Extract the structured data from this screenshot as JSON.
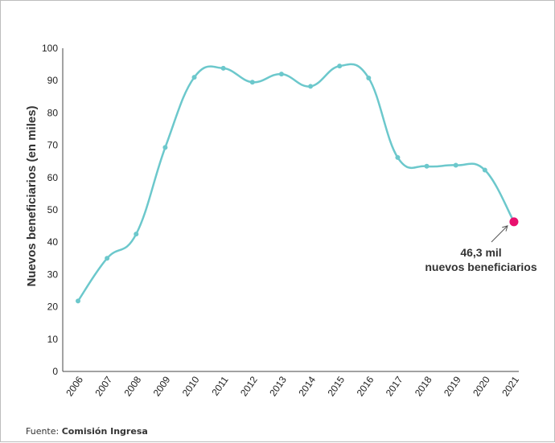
{
  "chart_data": {
    "type": "line",
    "x": [
      "2006",
      "2007",
      "2008",
      "2009",
      "2010",
      "2011",
      "2012",
      "2013",
      "2014",
      "2015",
      "2016",
      "2017",
      "2018",
      "2019",
      "2020",
      "2021"
    ],
    "values": [
      21.8,
      35.0,
      42.5,
      69.3,
      91.0,
      93.8,
      89.5,
      92.0,
      88.2,
      94.5,
      90.8,
      66.2,
      63.5,
      63.8,
      62.3,
      46.3
    ],
    "ylabel": "Nuevos beneficiarios (en miles)",
    "ylim": [
      0,
      100
    ],
    "yticks": [
      0,
      10,
      20,
      30,
      40,
      50,
      60,
      70,
      80,
      90,
      100
    ],
    "grid": false,
    "line_color": "#6CC8CC",
    "highlight_color": "#E8106E",
    "annotation": {
      "line1": "46,3 mil",
      "line2": "nuevos beneficiarios",
      "target": "2021"
    }
  },
  "source": {
    "prefix": "Fuente: ",
    "name": "Comisión Ingresa"
  }
}
